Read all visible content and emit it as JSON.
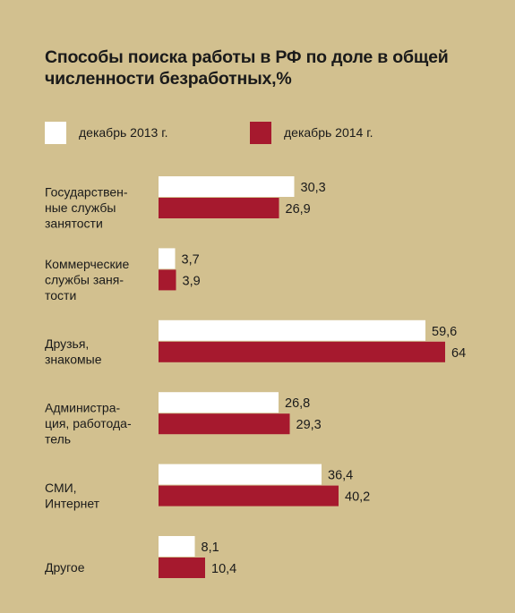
{
  "chart_data": {
    "type": "bar",
    "orientation": "horizontal",
    "title": "Способы поиска работы в РФ по доле в общей численности безработных,%",
    "categories": [
      [
        "Государствен-",
        "ные службы",
        "занятости"
      ],
      [
        "Коммерческие",
        "службы заня-",
        "тости"
      ],
      [
        "Друзья,",
        "знакомые"
      ],
      [
        "Администра-",
        "ция, работода-",
        "тель"
      ],
      [
        "СМИ,",
        "Интернет"
      ],
      [
        "Другое"
      ]
    ],
    "series": [
      {
        "name": "декабрь 2013 г.",
        "color": "#ffffff",
        "values": [
          30.3,
          3.7,
          59.6,
          26.8,
          36.4,
          8.1
        ],
        "labels": [
          "30,3",
          "3,7",
          "59,6",
          "26,8",
          "36,4",
          "8,1"
        ]
      },
      {
        "name": "декабрь 2014 г.",
        "color": "#a6192e",
        "values": [
          26.9,
          3.9,
          64,
          29.3,
          40.2,
          10.4
        ],
        "labels": [
          "26,9",
          "3,9",
          "64",
          "29,3",
          "40,2",
          "10,4"
        ]
      }
    ],
    "xlim": [
      0,
      64
    ],
    "grid": false,
    "legend": "top"
  }
}
